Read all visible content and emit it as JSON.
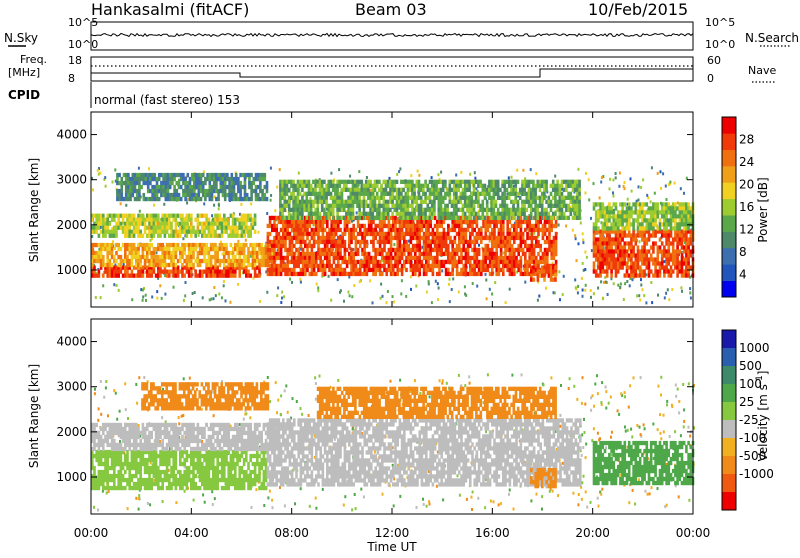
{
  "header": {
    "station": "Hankasalmi (fitACF)",
    "beam": "Beam 03",
    "date": "10/Feb/2015"
  },
  "noise_panel": {
    "left_label": "N.Sky",
    "right_label": "N.Search",
    "left_ticks": [
      "10^5",
      "10^0"
    ],
    "right_ticks": [
      "10^5",
      "10^0"
    ]
  },
  "freq_panel": {
    "left_label_1": "Freq.",
    "left_label_2": "[MHz]",
    "left_ticks": [
      "18",
      "8"
    ],
    "right_ticks": [
      "60",
      "0"
    ],
    "right_label": "Nave"
  },
  "cpid": {
    "label": "CPID",
    "text": "normal (fast stereo) 153"
  },
  "colors": {
    "power": [
      "#0000ee",
      "#2255bb",
      "#3d6fb0",
      "#4e8a6a",
      "#5aa84a",
      "#9ccc30",
      "#f0d020",
      "#f0a018",
      "#f07010",
      "#f03a0a",
      "#ee0000"
    ],
    "velocity": [
      "#1a1aaa",
      "#2a5fb0",
      "#3d8a6a",
      "#4ea84a",
      "#86c840",
      "#bdbdbd",
      "#f0b020",
      "#f08a18",
      "#f05a10",
      "#ee0000"
    ]
  },
  "chart_data": [
    {
      "type": "heatmap",
      "name": "power",
      "xlabel": "",
      "ylabel": "Slant Range [km]",
      "xlim": [
        "00:00",
        "24:00"
      ],
      "ylim": [
        180,
        4500
      ],
      "y_ticks": [
        "1000",
        "2000",
        "3000",
        "4000"
      ],
      "colorbar_label": "Power [dB]",
      "colorbar_ticks": [
        "4",
        "8",
        "12",
        "16",
        "20",
        "24",
        "28"
      ],
      "colorbar_range": [
        0,
        32
      ],
      "regions": [
        {
          "t0": 0.0,
          "t1": 6.7,
          "r0": 850,
          "r1": 1100,
          "power": 29
        },
        {
          "t0": 0.0,
          "t1": 7.2,
          "r0": 1100,
          "r1": 1600,
          "power": 22
        },
        {
          "t0": 0.0,
          "t1": 6.5,
          "r0": 1750,
          "r1": 2250,
          "power": 17
        },
        {
          "t0": 1.0,
          "t1": 7.0,
          "r0": 2550,
          "r1": 3150,
          "power": 9
        },
        {
          "t0": 7.0,
          "t1": 18.5,
          "r0": 900,
          "r1": 2200,
          "power": 28
        },
        {
          "t0": 7.5,
          "t1": 19.5,
          "r0": 2200,
          "r1": 3000,
          "power": 13
        },
        {
          "t0": 17.5,
          "t1": 18.5,
          "r0": 800,
          "r1": 1100,
          "power": 27
        },
        {
          "t0": 20.0,
          "t1": 24.0,
          "r0": 900,
          "r1": 1900,
          "power": 28
        },
        {
          "t0": 20.0,
          "t1": 24.0,
          "r0": 1900,
          "r1": 2500,
          "power": 15
        }
      ]
    },
    {
      "type": "heatmap",
      "name": "velocity",
      "xlabel": "Time UT",
      "ylabel": "Slant Range [km]",
      "xlim": [
        "00:00",
        "24:00"
      ],
      "ylim": [
        180,
        4500
      ],
      "x_ticks": [
        "00:00",
        "04:00",
        "08:00",
        "12:00",
        "16:00",
        "20:00",
        "00:00"
      ],
      "y_ticks": [
        "1000",
        "2000",
        "3000",
        "4000"
      ],
      "colorbar_label": "Velocity [m s^-1]",
      "colorbar_ticks": [
        "1000",
        "500",
        "100",
        "25",
        "-25",
        "-100",
        "-500",
        "-1000"
      ],
      "regions": [
        {
          "t0": 0.0,
          "t1": 7.0,
          "r0": 750,
          "r1": 1600,
          "velocity": 80
        },
        {
          "t0": 0.0,
          "t1": 7.5,
          "r0": 1600,
          "r1": 2200,
          "velocity": 0
        },
        {
          "t0": 2.0,
          "t1": 7.0,
          "r0": 2500,
          "r1": 3100,
          "velocity": -150
        },
        {
          "t0": 7.0,
          "t1": 19.5,
          "r0": 800,
          "r1": 2300,
          "velocity": 0
        },
        {
          "t0": 9.0,
          "t1": 18.5,
          "r0": 2300,
          "r1": 3000,
          "velocity": -200
        },
        {
          "t0": 17.5,
          "t1": 18.5,
          "r0": 800,
          "r1": 1200,
          "velocity": -400
        },
        {
          "t0": 20.0,
          "t1": 24.0,
          "r0": 900,
          "r1": 1800,
          "velocity": 300
        }
      ]
    }
  ],
  "time_axis": {
    "ticks": [
      "00:00",
      "04:00",
      "08:00",
      "12:00",
      "16:00",
      "20:00",
      "00:00"
    ],
    "label": "Time UT"
  }
}
